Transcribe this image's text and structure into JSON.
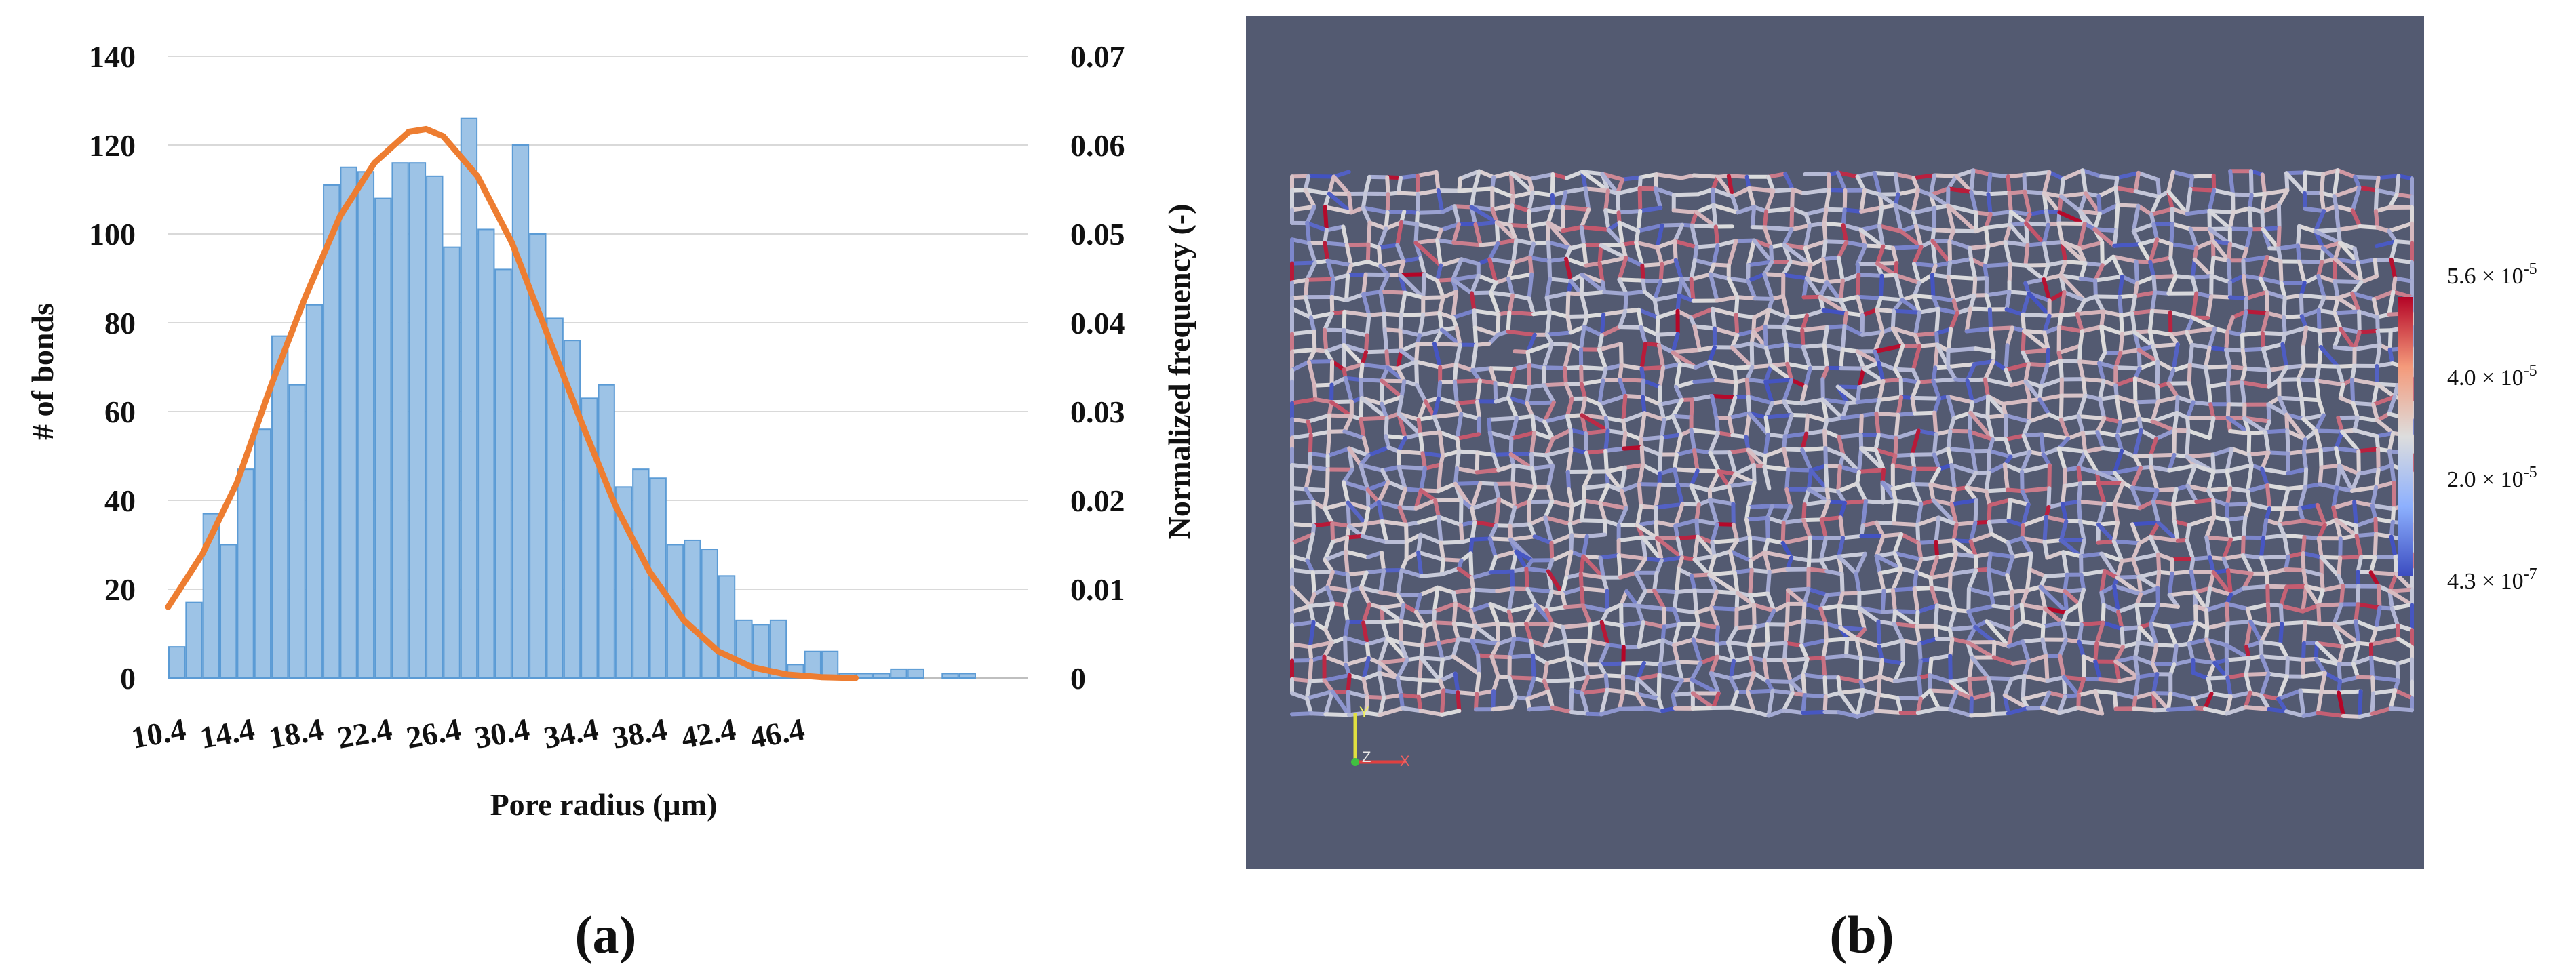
{
  "captions": {
    "left": "(a)",
    "right": "(b)"
  },
  "chart_data": {
    "type": "bar",
    "xlabel": "Pore radius (µm)",
    "ylabel": "# of bonds",
    "y2label": "Normalized frequency (-)",
    "ylim": [
      0,
      140
    ],
    "y2lim": [
      0,
      0.07
    ],
    "y_ticks": [
      "0",
      "20",
      "40",
      "60",
      "80",
      "100",
      "120",
      "140"
    ],
    "y2_ticks": [
      "0",
      "0.01",
      "0.02",
      "0.03",
      "0.04",
      "0.05",
      "0.06",
      "0.07"
    ],
    "x_tick_labels": [
      "10.4",
      "14.4",
      "18.4",
      "22.4",
      "26.4",
      "30.4",
      "34.4",
      "38.4",
      "42.4",
      "46.4"
    ],
    "bin_start": 10.4,
    "bin_width": 1,
    "grid": true,
    "bar_color": "#9dc3e6",
    "bar_edge_color": "#5b9bd5",
    "series": [
      {
        "type": "bar",
        "axis": "left",
        "values": [
          7,
          17,
          37,
          30,
          47,
          56,
          77,
          66,
          84,
          111,
          115,
          114,
          108,
          116,
          116,
          113,
          97,
          126,
          101,
          92,
          120,
          100,
          81,
          76,
          63,
          66,
          43,
          47,
          45,
          30,
          31,
          29,
          23,
          13,
          12,
          13,
          3,
          6,
          6,
          1,
          1,
          1,
          2,
          2,
          0,
          1,
          1,
          0,
          0,
          0
        ]
      },
      {
        "type": "line",
        "axis": "right",
        "color": "#ed7d31",
        "x": [
          10.4,
          12.4,
          14.4,
          16.4,
          18.4,
          20.4,
          22.4,
          24.4,
          25.4,
          26.4,
          28.4,
          30.4,
          32.4,
          34.4,
          36.4,
          38.4,
          40.4,
          42.4,
          44.4,
          46.4,
          48.4,
          50.4
        ],
        "values": [
          0.008,
          0.014,
          0.022,
          0.033,
          0.043,
          0.052,
          0.058,
          0.0615,
          0.0618,
          0.061,
          0.0565,
          0.049,
          0.039,
          0.029,
          0.0195,
          0.012,
          0.0065,
          0.003,
          0.0012,
          0.0004,
          0.0001,
          0.0
        ]
      }
    ]
  },
  "network_view": {
    "background": "#535a71",
    "colorbar_labels": [
      {
        "mantissa": "5.6 × 10",
        "exponent": "-5"
      },
      {
        "mantissa": "4.0 × 10",
        "exponent": "-5"
      },
      {
        "mantissa": "2.0 × 10",
        "exponent": "-5"
      },
      {
        "mantissa": "4.3 × 10",
        "exponent": "-7"
      }
    ],
    "colors": {
      "low": "#3b4cc0",
      "mid": "#dddddd",
      "high": "#b40426"
    },
    "axes_labels": {
      "y": "Y",
      "z": "Z",
      "x": "X"
    }
  }
}
